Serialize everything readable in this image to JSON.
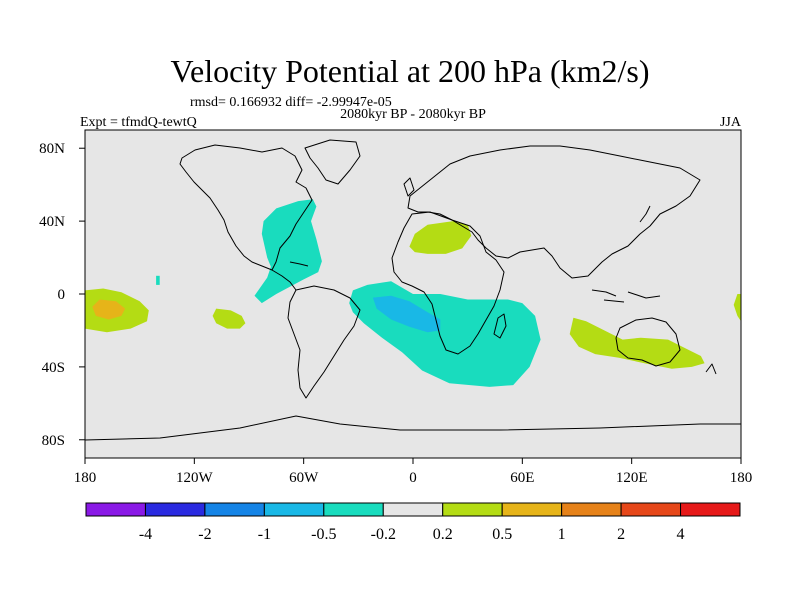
{
  "chart_data": {
    "type": "heatmap",
    "title": "Velocity Potential at 200 hPa (km2/s)",
    "stats": "rmsd= 0.166932  diff= -2.99947e-05",
    "left_label": "Expt = tfmdQ-tewtQ",
    "center_label": "2080kyr BP - 2080kyr BP",
    "right_label": "JJA",
    "projection": "cylindrical-equidistant",
    "xlim": [
      -180,
      180
    ],
    "ylim": [
      -90,
      90
    ],
    "x_ticks": [
      {
        "value": -180,
        "label": "180"
      },
      {
        "value": -120,
        "label": "120W"
      },
      {
        "value": -60,
        "label": "60W"
      },
      {
        "value": 0,
        "label": "0"
      },
      {
        "value": 60,
        "label": "60E"
      },
      {
        "value": 120,
        "label": "120E"
      },
      {
        "value": 180,
        "label": "180"
      }
    ],
    "y_ticks": [
      {
        "value": 80,
        "label": "80N"
      },
      {
        "value": 40,
        "label": "40N"
      },
      {
        "value": 0,
        "label": "0"
      },
      {
        "value": -40,
        "label": "40S"
      },
      {
        "value": -80,
        "label": "80S"
      }
    ],
    "colorbar": {
      "colors": [
        "#8a19e6",
        "#2a2ae0",
        "#1584e6",
        "#19b8e6",
        "#19dcbe",
        "#e6e6e6",
        "#b4dc14",
        "#e6b419",
        "#e68219",
        "#e64719",
        "#e61919"
      ],
      "levels": [
        "-4",
        "-2",
        "-1",
        "-0.5",
        "-0.2",
        "0.2",
        "0.5",
        "1",
        "2",
        "4"
      ]
    },
    "regions": [
      {
        "name": "north-atlantic-negative",
        "level": "-0.2",
        "color": "#19dcbe",
        "polygon": [
          [
            -80,
            20
          ],
          [
            -83,
            33
          ],
          [
            -82,
            40
          ],
          [
            -75,
            47
          ],
          [
            -63,
            51
          ],
          [
            -55,
            52
          ],
          [
            -53,
            48
          ],
          [
            -56,
            40
          ],
          [
            -53,
            30
          ],
          [
            -50,
            18
          ],
          [
            -52,
            12
          ],
          [
            -60,
            8
          ],
          [
            -75,
            0
          ],
          [
            -83,
            -5
          ],
          [
            -87,
            -1
          ],
          [
            -80,
            9
          ],
          [
            -78,
            15
          ]
        ]
      },
      {
        "name": "africa-indian-negative",
        "level": "-0.2",
        "color": "#19dcbe",
        "polygon": [
          [
            -35,
            -5
          ],
          [
            -33,
            2
          ],
          [
            -25,
            5
          ],
          [
            -12,
            7
          ],
          [
            0,
            0
          ],
          [
            15,
            0
          ],
          [
            30,
            -3
          ],
          [
            42,
            -3
          ],
          [
            52,
            -3
          ],
          [
            60,
            -5
          ],
          [
            67,
            -12
          ],
          [
            70,
            -25
          ],
          [
            64,
            -40
          ],
          [
            55,
            -50
          ],
          [
            42,
            -51
          ],
          [
            20,
            -49
          ],
          [
            5,
            -42
          ],
          [
            -6,
            -32
          ],
          [
            -17,
            -24
          ],
          [
            -27,
            -16
          ],
          [
            -33,
            -10
          ]
        ]
      },
      {
        "name": "africa-inner-negative",
        "level": "-0.5",
        "color": "#19b8e6",
        "polygon": [
          [
            -22,
            -2
          ],
          [
            -12,
            -1
          ],
          [
            -2,
            -4
          ],
          [
            8,
            -10
          ],
          [
            15,
            -14
          ],
          [
            15,
            -20
          ],
          [
            8,
            -21
          ],
          [
            -2,
            -18
          ],
          [
            -12,
            -14
          ],
          [
            -20,
            -8
          ]
        ]
      },
      {
        "name": "pacific-dateline-positive",
        "level": "0.2",
        "color": "#b4dc14",
        "polygon": [
          [
            -180,
            2
          ],
          [
            -170,
            3
          ],
          [
            -160,
            1
          ],
          [
            -150,
            -4
          ],
          [
            -145,
            -9
          ],
          [
            -146,
            -15
          ],
          [
            -155,
            -19
          ],
          [
            -168,
            -21
          ],
          [
            -180,
            -19
          ]
        ]
      },
      {
        "name": "pacific-dateline-inner-positive",
        "level": "0.5",
        "color": "#e6b419",
        "polygon": [
          [
            -172,
            -3
          ],
          [
            -163,
            -4
          ],
          [
            -158,
            -8
          ],
          [
            -160,
            -12
          ],
          [
            -167,
            -14
          ],
          [
            -174,
            -12
          ],
          [
            -176,
            -7
          ]
        ]
      },
      {
        "name": "east-pacific-positive",
        "level": "0.2",
        "color": "#b4dc14",
        "polygon": [
          [
            -108,
            -8
          ],
          [
            -100,
            -9
          ],
          [
            -94,
            -12
          ],
          [
            -92,
            -16
          ],
          [
            -95,
            -19
          ],
          [
            -102,
            -19
          ],
          [
            -108,
            -16
          ],
          [
            -110,
            -12
          ]
        ]
      },
      {
        "name": "north-africa-positive",
        "level": "0.2",
        "color": "#b4dc14",
        "polygon": [
          [
            -2,
            26
          ],
          [
            1,
            33
          ],
          [
            8,
            38
          ],
          [
            22,
            40
          ],
          [
            30,
            38
          ],
          [
            32,
            32
          ],
          [
            27,
            25
          ],
          [
            18,
            22
          ],
          [
            8,
            22
          ],
          [
            1,
            23
          ]
        ]
      },
      {
        "name": "australia-positive",
        "level": "0.2",
        "color": "#b4dc14",
        "polygon": [
          [
            88,
            -13
          ],
          [
            95,
            -15
          ],
          [
            105,
            -20
          ],
          [
            115,
            -25
          ],
          [
            125,
            -24
          ],
          [
            140,
            -25
          ],
          [
            150,
            -30
          ],
          [
            158,
            -34
          ],
          [
            160,
            -38
          ],
          [
            153,
            -40
          ],
          [
            142,
            -41
          ],
          [
            127,
            -38
          ],
          [
            113,
            -35
          ],
          [
            100,
            -33
          ],
          [
            91,
            -29
          ],
          [
            86,
            -22
          ]
        ]
      },
      {
        "name": "west-pacific-positive",
        "level": "0.2",
        "color": "#b4dc14",
        "polygon": [
          [
            178,
            0
          ],
          [
            180,
            0
          ],
          [
            180,
            -15
          ],
          [
            178,
            -12
          ],
          [
            176,
            -6
          ]
        ]
      },
      {
        "name": "central-pacific-speck",
        "level": "-0.2",
        "color": "#19dcbe",
        "polygon": [
          [
            -141,
            10
          ],
          [
            -139,
            10
          ],
          [
            -139,
            5
          ],
          [
            -141,
            5
          ]
        ]
      }
    ]
  }
}
